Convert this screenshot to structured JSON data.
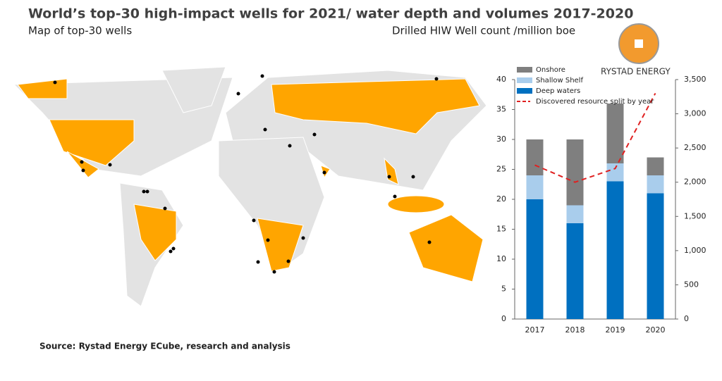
{
  "title": "World’s top-30 high-impact wells for 2021/ water depth and volumes 2017-2020",
  "map": {
    "title": "Map of top-30 wells"
  },
  "logo": "RYSTAD ENERGY",
  "source": "Source: Rystad Energy ECube, research and analysis",
  "chart_data": {
    "type": "bar",
    "stacked": true,
    "title": "Drilled HIW Well count /million boe",
    "categories": [
      "2017",
      "2018",
      "2019",
      "2020"
    ],
    "series": [
      {
        "name": "Deep waters",
        "color": "#0070c0",
        "values": [
          20,
          16,
          23,
          21
        ]
      },
      {
        "name": "Shallow Shelf",
        "color": "#a9cdec",
        "values": [
          4,
          3,
          3,
          3
        ]
      },
      {
        "name": "Onshore",
        "color": "#7f7f7f",
        "values": [
          6,
          11,
          10,
          3
        ]
      },
      {
        "name": "Discovered resource split by year",
        "color": "#e02020",
        "type": "line",
        "dashed": true,
        "axis": "y2",
        "values": [
          2250,
          2000,
          2200,
          3300
        ]
      }
    ],
    "ylim": [
      0,
      40
    ],
    "yticks": [
      0,
      5,
      10,
      15,
      20,
      25,
      30,
      35,
      40
    ],
    "y2lim": [
      0,
      3500
    ],
    "y2ticks": [
      0,
      500,
      {
        "value": 1000,
        "label": "1,000"
      },
      {
        "value": 1500,
        "label": "1,500"
      },
      {
        "value": 2000,
        "label": "2,000"
      },
      {
        "value": 2500,
        "label": "2,500"
      },
      {
        "value": 3000,
        "label": "3,000"
      },
      {
        "value": 3500,
        "label": "3,500"
      }
    ]
  }
}
